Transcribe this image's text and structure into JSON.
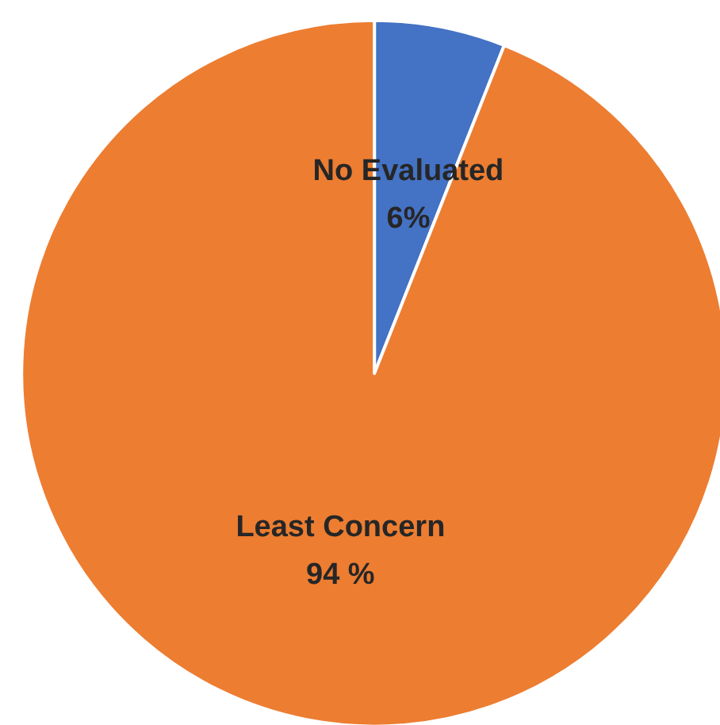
{
  "chart_data": {
    "type": "pie",
    "categories": [
      "No Evaluated",
      "Least Concern"
    ],
    "values": [
      6,
      94
    ],
    "colors": [
      "#4472c4",
      "#ed7d31"
    ],
    "value_labels": [
      "6%",
      "94 %"
    ]
  }
}
